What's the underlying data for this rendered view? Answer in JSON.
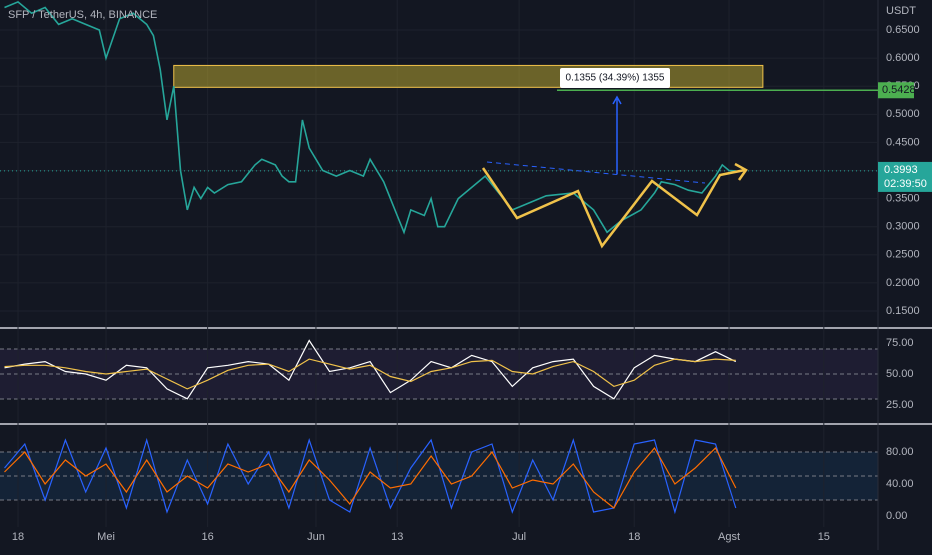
{
  "header": {
    "title": "SFP / TetherUS, 4h, BINANCE",
    "currency": "USDT"
  },
  "chart_data": [
    {
      "type": "line",
      "x": [
        -2,
        0,
        2,
        4,
        6,
        8,
        10,
        12,
        13,
        15,
        17,
        19,
        20,
        21,
        22,
        23,
        24,
        25,
        26,
        27,
        28,
        29,
        31,
        33,
        35,
        36,
        38,
        39,
        40,
        41,
        42,
        43,
        44,
        45,
        47,
        49,
        51,
        52,
        54,
        55,
        56,
        57,
        58,
        60,
        61,
        62,
        63,
        65,
        67,
        69,
        71,
        73,
        75,
        78,
        82,
        85,
        87,
        89,
        92,
        94,
        95,
        97,
        99,
        101,
        103,
        104,
        105,
        106
      ],
      "series": [
        {
          "color": "#26a69a",
          "values": [
            0.69,
            0.7,
            0.68,
            0.69,
            0.66,
            0.67,
            0.66,
            0.65,
            0.6,
            0.67,
            0.68,
            0.66,
            0.64,
            0.58,
            0.49,
            0.55,
            0.4,
            0.33,
            0.37,
            0.35,
            0.37,
            0.36,
            0.375,
            0.38,
            0.41,
            0.42,
            0.41,
            0.39,
            0.38,
            0.38,
            0.49,
            0.44,
            0.42,
            0.4,
            0.39,
            0.4,
            0.39,
            0.42,
            0.38,
            0.35,
            0.32,
            0.29,
            0.33,
            0.32,
            0.35,
            0.3,
            0.3,
            0.35,
            0.37,
            0.39,
            0.36,
            0.33,
            0.34,
            0.355,
            0.36,
            0.33,
            0.29,
            0.31,
            0.33,
            0.36,
            0.38,
            0.375,
            0.365,
            0.36,
            0.39,
            0.41,
            0.4,
            0.3993
          ]
        }
      ],
      "xlim": [
        -2.66,
        127
      ],
      "xticks": [
        {
          "value": 0,
          "label": "18"
        },
        {
          "value": 13,
          "label": "Mei"
        },
        {
          "value": 28,
          "label": "16"
        },
        {
          "value": 44,
          "label": "Jun"
        },
        {
          "value": 56,
          "label": "13"
        },
        {
          "value": 74,
          "label": "Jul"
        },
        {
          "value": 91,
          "label": "18"
        },
        {
          "value": 105,
          "label": "Agst"
        },
        {
          "value": 119,
          "label": "15"
        }
      ],
      "ylim": [
        0.1198,
        0.7034
      ],
      "yticks": [
        {
          "value": 0.65,
          "label": "0.6500"
        },
        {
          "value": 0.6,
          "label": "0.6000"
        },
        {
          "value": 0.55,
          "label": "0.5500"
        },
        {
          "value": 0.5,
          "label": "0.5000"
        },
        {
          "value": 0.45,
          "label": "0.4500"
        },
        {
          "value": 0.4,
          "label": "0.4000"
        },
        {
          "value": 0.35,
          "label": "0.3500"
        },
        {
          "value": 0.3,
          "label": "0.3000"
        },
        {
          "value": 0.25,
          "label": "0.2500"
        },
        {
          "value": 0.2,
          "label": "0.2000"
        },
        {
          "value": 0.15,
          "label": "0.1500"
        }
      ],
      "grid": true,
      "zone": {
        "x": [
          23,
          110
        ],
        "y": [
          0.548,
          0.587
        ]
      },
      "measure_label": "0.1355 (34.39%) 1355",
      "target": 0.5428,
      "last": 0.3993,
      "countdown": "02:39:50"
    },
    {
      "type": "line",
      "x": [
        -2,
        1,
        4,
        7,
        10,
        13,
        16,
        19,
        22,
        25,
        28,
        31,
        34,
        37,
        40,
        43,
        46,
        49,
        52,
        55,
        58,
        61,
        64,
        67,
        70,
        73,
        76,
        79,
        82,
        85,
        88,
        91,
        94,
        97,
        100,
        103,
        106
      ],
      "series": [
        {
          "color": "#ffffff",
          "values": [
            55,
            58,
            60,
            52,
            50,
            45,
            57,
            55,
            38,
            30,
            55,
            57,
            60,
            58,
            45,
            77,
            52,
            55,
            60,
            35,
            45,
            60,
            55,
            65,
            60,
            40,
            55,
            60,
            62,
            40,
            30,
            55,
            65,
            62,
            60,
            68,
            60
          ]
        },
        {
          "color": "#f0c24a",
          "values": [
            56,
            57,
            57,
            55,
            52,
            50,
            52,
            54,
            46,
            38,
            45,
            53,
            57,
            58,
            52,
            62,
            58,
            54,
            57,
            48,
            44,
            52,
            55,
            60,
            61,
            52,
            50,
            56,
            60,
            52,
            40,
            45,
            57,
            62,
            60,
            62,
            61
          ]
        }
      ],
      "ylim": [
        11.3,
        85.5
      ],
      "yticks": [
        {
          "value": 75,
          "label": "75.00"
        },
        {
          "value": 50,
          "label": "50.00"
        },
        {
          "value": 25,
          "label": "25.00"
        }
      ]
    },
    {
      "type": "line",
      "x": [
        -2,
        1,
        4,
        7,
        10,
        13,
        16,
        19,
        22,
        25,
        28,
        31,
        34,
        37,
        40,
        43,
        46,
        49,
        52,
        55,
        58,
        61,
        64,
        67,
        70,
        73,
        76,
        79,
        82,
        85,
        88,
        91,
        94,
        97,
        100,
        103,
        106
      ],
      "series": [
        {
          "color": "#2962ff",
          "values": [
            60,
            90,
            20,
            95,
            30,
            85,
            10,
            95,
            5,
            70,
            15,
            90,
            40,
            80,
            10,
            95,
            20,
            5,
            85,
            10,
            60,
            95,
            10,
            80,
            90,
            5,
            70,
            20,
            95,
            5,
            10,
            90,
            95,
            5,
            95,
            90,
            10
          ]
        },
        {
          "color": "#ff6d00",
          "values": [
            55,
            80,
            40,
            70,
            50,
            65,
            30,
            70,
            30,
            50,
            35,
            65,
            55,
            65,
            30,
            70,
            45,
            15,
            55,
            35,
            40,
            75,
            40,
            50,
            80,
            35,
            45,
            40,
            65,
            30,
            10,
            55,
            85,
            40,
            60,
            85,
            35
          ]
        }
      ],
      "ylim": [
        -13.75,
        112.5
      ],
      "yticks": [
        {
          "value": 80,
          "label": "80.00"
        },
        {
          "value": 40,
          "label": "40.00"
        },
        {
          "value": 0,
          "label": "0.00"
        }
      ]
    }
  ]
}
